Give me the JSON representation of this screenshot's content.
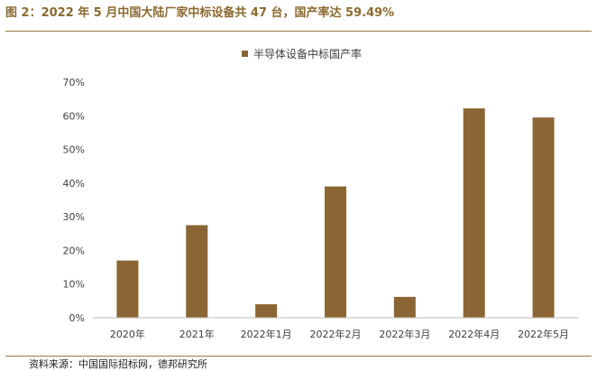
{
  "figure": {
    "title": "图 2：2022 年 5 月中国大陆厂家中标设备共 47 台，国产率达 59.49%",
    "source": "资料来源：中国国际招标网，德邦研究所"
  },
  "colors": {
    "bar": "#8b6533",
    "title": "#8b6a2f",
    "rule": "#9a7a44",
    "axis": "#bfbfbf",
    "text": "#404040"
  },
  "chart_data": {
    "type": "bar",
    "title": "",
    "xlabel": "",
    "ylabel": "",
    "categories": [
      "2020年",
      "2021年",
      "2022年1月",
      "2022年2月",
      "2022年3月",
      "2022年4月",
      "2022年5月"
    ],
    "series": [
      {
        "name": "半导体设备中标国产率",
        "values": [
          17.0,
          27.5,
          4.0,
          39.0,
          6.2,
          62.2,
          59.49
        ]
      }
    ],
    "ylim": [
      0,
      70
    ],
    "yticks": [
      0,
      10,
      20,
      30,
      40,
      50,
      60,
      70
    ],
    "ytick_labels": [
      "0%",
      "10%",
      "20%",
      "30%",
      "40%",
      "50%",
      "60%",
      "70%"
    ],
    "grid": false,
    "legend": "top-center"
  }
}
